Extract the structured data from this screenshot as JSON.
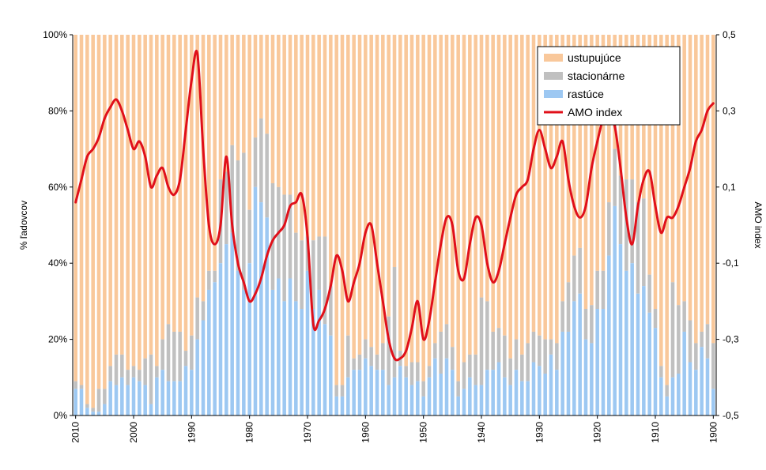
{
  "chart_data": {
    "type": "bar",
    "subtype": "stacked-percent bars with secondary-axis line",
    "xlim": [
      2010,
      1900
    ],
    "x_ticks": [
      "2010",
      "2000",
      "1990",
      "1980",
      "1970",
      "1960",
      "1950",
      "1940",
      "1930",
      "1920",
      "1910",
      "1900"
    ],
    "y_left": {
      "label": "% ľadovcov",
      "ylim": [
        0,
        100
      ],
      "ticks": [
        "0%",
        "20%",
        "40%",
        "60%",
        "80%",
        "100%"
      ]
    },
    "y_right": {
      "label": "AMO index",
      "ylim": [
        -0.5,
        0.5
      ],
      "ticks": [
        "-0,5",
        "-0,3",
        "-0,1",
        "0,1",
        "0,3",
        "0,5"
      ]
    },
    "legend": {
      "placement": "top-right",
      "items": [
        {
          "label": "ustupujúce",
          "color": "#f9c89b",
          "kind": "bar"
        },
        {
          "label": "stacionárne",
          "color": "#c0c0c0",
          "kind": "bar"
        },
        {
          "label": "rastúce",
          "color": "#9dc8f2",
          "kind": "bar"
        },
        {
          "label": "AMO index",
          "color": "#e0101a",
          "kind": "line"
        }
      ]
    },
    "colors": {
      "advancing": "#9dc8f2",
      "stationary": "#c0c0c0",
      "retreating": "#f9c89b",
      "amo": "#e0101a"
    },
    "years": [
      2010,
      2009,
      2008,
      2007,
      2006,
      2005,
      2004,
      2003,
      2002,
      2001,
      2000,
      1999,
      1998,
      1997,
      1996,
      1995,
      1994,
      1993,
      1992,
      1991,
      1990,
      1989,
      1988,
      1987,
      1986,
      1985,
      1984,
      1983,
      1982,
      1981,
      1980,
      1979,
      1978,
      1977,
      1976,
      1975,
      1974,
      1973,
      1972,
      1971,
      1970,
      1969,
      1968,
      1967,
      1966,
      1965,
      1964,
      1963,
      1962,
      1961,
      1960,
      1959,
      1958,
      1957,
      1956,
      1955,
      1954,
      1953,
      1952,
      1951,
      1950,
      1949,
      1948,
      1947,
      1946,
      1945,
      1944,
      1943,
      1942,
      1941,
      1940,
      1939,
      1938,
      1937,
      1936,
      1935,
      1934,
      1933,
      1932,
      1931,
      1930,
      1929,
      1928,
      1927,
      1926,
      1925,
      1924,
      1923,
      1922,
      1921,
      1920,
      1919,
      1918,
      1917,
      1916,
      1915,
      1914,
      1913,
      1912,
      1911,
      1910,
      1909,
      1908,
      1907,
      1906,
      1905,
      1904,
      1903,
      1902,
      1901,
      1900
    ],
    "series": [
      {
        "name": "rastúce",
        "values": [
          7,
          7,
          2,
          1,
          1,
          3,
          9,
          8,
          10,
          8,
          10,
          9,
          8,
          3,
          10,
          12,
          9,
          9,
          9,
          13,
          12,
          20,
          25,
          33,
          35,
          40,
          45,
          48,
          38,
          33,
          40,
          60,
          56,
          52,
          33,
          36,
          30,
          36,
          30,
          28,
          38,
          28,
          33,
          24,
          21,
          5,
          5,
          10,
          12,
          12,
          15,
          13,
          12,
          12,
          8,
          10,
          13,
          10,
          8,
          9,
          5,
          10,
          15,
          11,
          15,
          12,
          5,
          7,
          10,
          8,
          8,
          12,
          12,
          14,
          10,
          8,
          12,
          9,
          9,
          14,
          13,
          11,
          16,
          12,
          22,
          22,
          30,
          32,
          20,
          19,
          28,
          28,
          42,
          55,
          45,
          38,
          40,
          32,
          34,
          27,
          23,
          10,
          5,
          10,
          11,
          22,
          14,
          12,
          18,
          15,
          7
        ]
      },
      {
        "name": "stacionárne",
        "values": [
          2,
          1,
          1,
          1,
          6,
          4,
          4,
          8,
          6,
          4,
          3,
          3,
          7,
          13,
          3,
          8,
          15,
          13,
          13,
          4,
          9,
          11,
          5,
          5,
          3,
          22,
          19,
          23,
          29,
          36,
          14,
          13,
          22,
          22,
          28,
          24,
          28,
          22,
          18,
          18,
          9,
          18,
          14,
          23,
          13,
          3,
          3,
          11,
          3,
          4,
          5,
          5,
          4,
          7,
          18,
          29,
          4,
          3,
          6,
          5,
          4,
          3,
          4,
          11,
          9,
          6,
          4,
          7,
          6,
          8,
          23,
          18,
          10,
          9,
          11,
          7,
          8,
          7,
          10,
          8,
          8,
          9,
          4,
          7,
          8,
          13,
          12,
          12,
          8,
          10,
          10,
          10,
          14,
          15,
          18,
          24,
          22,
          24,
          23,
          10,
          5,
          3,
          3,
          25,
          18,
          8,
          11,
          7,
          4,
          9,
          12
        ]
      },
      {
        "name": "AMO index",
        "axis": "right",
        "values": [
          0.06,
          0.12,
          0.18,
          0.2,
          0.23,
          0.28,
          0.31,
          0.33,
          0.3,
          0.25,
          0.2,
          0.22,
          0.18,
          0.1,
          0.13,
          0.15,
          0.1,
          0.08,
          0.12,
          0.25,
          0.38,
          0.45,
          0.2,
          0.0,
          -0.05,
          0.0,
          0.18,
          0.0,
          -0.1,
          -0.15,
          -0.2,
          -0.18,
          -0.14,
          -0.08,
          -0.04,
          -0.02,
          0.0,
          0.05,
          0.06,
          0.08,
          -0.03,
          -0.26,
          -0.25,
          -0.22,
          -0.16,
          -0.08,
          -0.12,
          -0.2,
          -0.15,
          -0.1,
          -0.02,
          0.0,
          -0.1,
          -0.2,
          -0.3,
          -0.35,
          -0.35,
          -0.33,
          -0.27,
          -0.2,
          -0.3,
          -0.25,
          -0.15,
          -0.05,
          0.02,
          0.0,
          -0.12,
          -0.14,
          -0.05,
          0.02,
          0.0,
          -0.1,
          -0.15,
          -0.12,
          -0.05,
          0.02,
          0.08,
          0.1,
          0.12,
          0.2,
          0.25,
          0.2,
          0.15,
          0.18,
          0.22,
          0.12,
          0.05,
          0.02,
          0.05,
          0.15,
          0.22,
          0.28,
          0.3,
          0.26,
          0.15,
          0.02,
          -0.05,
          0.05,
          0.12,
          0.14,
          0.05,
          -0.02,
          0.02,
          0.02,
          0.05,
          0.1,
          0.15,
          0.22,
          0.25,
          0.3,
          0.32
        ]
      }
    ]
  }
}
